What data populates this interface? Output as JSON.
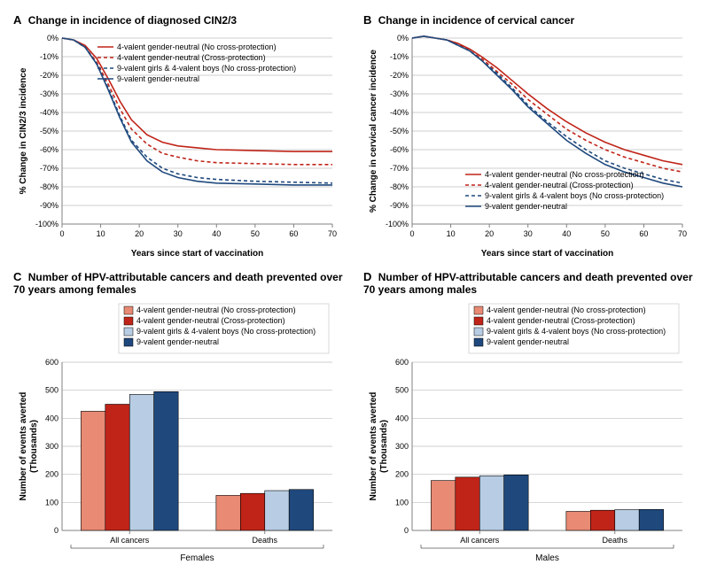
{
  "colors": {
    "s1": "#e88a74",
    "s2": "#c02418",
    "s3": "#b8cde4",
    "s4": "#1f497d",
    "grid": "#bfbfbf",
    "axis": "#808080",
    "bg": "#ffffff"
  },
  "series_labels": [
    "4-valent gender-neutral (No cross-protection)",
    "4-valent gender-neutral (Cross-protection)",
    "9-valent girls & 4-valent boys (No cross-protection)",
    "9-valent gender-neutral"
  ],
  "panelA": {
    "letter": "A",
    "title": "Change in incidence of diagnosed CIN2/3",
    "type": "line",
    "xlabel": "Years since start of vaccination",
    "ylabel": "% Change in CIN2/3 incidence",
    "xlim": [
      0,
      70
    ],
    "xtick_step": 10,
    "ylim": [
      -100,
      0
    ],
    "ytick_step": 10,
    "ytick_suffix": "%",
    "legend_pos": "top-right-inside",
    "x": [
      0,
      3,
      6,
      9,
      12,
      15,
      18,
      22,
      26,
      30,
      35,
      40,
      50,
      60,
      70
    ],
    "s1": [
      0,
      -1,
      -4,
      -11,
      -22,
      -34,
      -44,
      -52,
      -56,
      -58,
      -59,
      -60,
      -60.5,
      -61,
      -61
    ],
    "s2": [
      0,
      -1,
      -5,
      -13,
      -25,
      -38,
      -49,
      -57,
      -62,
      -64,
      -66,
      -67,
      -67.5,
      -68,
      -68
    ],
    "s3": [
      0,
      -1,
      -5,
      -14,
      -27,
      -42,
      -55,
      -64,
      -70,
      -73,
      -75,
      -76,
      -77,
      -77.5,
      -78
    ],
    "s4": [
      0,
      -1,
      -5,
      -14,
      -28,
      -43,
      -56,
      -66,
      -72,
      -75,
      -77,
      -78,
      -78.5,
      -79,
      -79
    ],
    "styles": {
      "s1": {
        "color": "#c02418",
        "dash": "none",
        "width": 1.6
      },
      "s2": {
        "color": "#c02418",
        "dash": "4 3",
        "width": 1.6
      },
      "s3": {
        "color": "#1f497d",
        "dash": "4 3",
        "width": 1.6
      },
      "s4": {
        "color": "#1f497d",
        "dash": "none",
        "width": 1.6
      }
    }
  },
  "panelB": {
    "letter": "B",
    "title": "Change in incidence of cervical cancer",
    "type": "line",
    "xlabel": "Years since start of vaccination",
    "ylabel": "% Change in cervical cancer incidence",
    "xlim": [
      0,
      70
    ],
    "xtick_step": 10,
    "ylim": [
      -100,
      0
    ],
    "ytick_step": 10,
    "ytick_suffix": "%",
    "legend_pos": "bottom-right-inside",
    "x": [
      0,
      3,
      6,
      9,
      12,
      15,
      18,
      22,
      26,
      30,
      35,
      40,
      45,
      50,
      55,
      60,
      65,
      70
    ],
    "s1": [
      0,
      1,
      0,
      -1,
      -3,
      -6,
      -10,
      -16,
      -23,
      -30,
      -38,
      -45,
      -51,
      -56,
      -60,
      -63,
      -66,
      -68
    ],
    "s2": [
      0,
      1,
      0,
      -1,
      -3,
      -7,
      -11,
      -18,
      -25,
      -33,
      -41,
      -49,
      -55,
      -60,
      -64,
      -67,
      -70,
      -72
    ],
    "s3": [
      0,
      1,
      0,
      -1,
      -4,
      -7,
      -12,
      -19,
      -27,
      -36,
      -45,
      -53,
      -60,
      -66,
      -70,
      -73,
      -76,
      -78
    ],
    "s4": [
      0,
      1,
      0,
      -1,
      -4,
      -7,
      -12,
      -20,
      -28,
      -37,
      -46,
      -55,
      -62,
      -68,
      -72,
      -75,
      -78,
      -80
    ],
    "styles": {
      "s1": {
        "color": "#c02418",
        "dash": "none",
        "width": 1.6
      },
      "s2": {
        "color": "#c02418",
        "dash": "4 3",
        "width": 1.6
      },
      "s3": {
        "color": "#1f497d",
        "dash": "4 3",
        "width": 1.6
      },
      "s4": {
        "color": "#1f497d",
        "dash": "none",
        "width": 1.6
      }
    }
  },
  "panelC": {
    "letter": "C",
    "title": "Number of HPV-attributable cancers and death prevented over 70 years among females",
    "type": "bar",
    "ylabel": "Number of events averted (Thousands)",
    "sublabel": "Females",
    "ylim": [
      0,
      600
    ],
    "ytick_step": 100,
    "categories": [
      "All cancers",
      "Deaths"
    ],
    "values": {
      "s1": [
        425,
        125
      ],
      "s2": [
        450,
        132
      ],
      "s3": [
        485,
        142
      ],
      "s4": [
        495,
        146
      ]
    },
    "bar_colors": {
      "s1": "#e88a74",
      "s2": "#c02418",
      "s3": "#b8cde4",
      "s4": "#1f497d"
    },
    "bar_border": "#000000",
    "bar_width": 0.18
  },
  "panelD": {
    "letter": "D",
    "title": "Number of HPV-attributable cancers and death prevented over 70 years among males",
    "type": "bar",
    "ylabel": "Number of events averted (Thousands)",
    "sublabel": "Males",
    "ylim": [
      0,
      600
    ],
    "ytick_step": 100,
    "categories": [
      "All cancers",
      "Deaths"
    ],
    "values": {
      "s1": [
        178,
        68
      ],
      "s2": [
        190,
        72
      ],
      "s3": [
        195,
        74
      ],
      "s4": [
        198,
        75
      ]
    },
    "bar_colors": {
      "s1": "#e88a74",
      "s2": "#c02418",
      "s3": "#b8cde4",
      "s4": "#1f497d"
    },
    "bar_border": "#000000",
    "bar_width": 0.18
  }
}
